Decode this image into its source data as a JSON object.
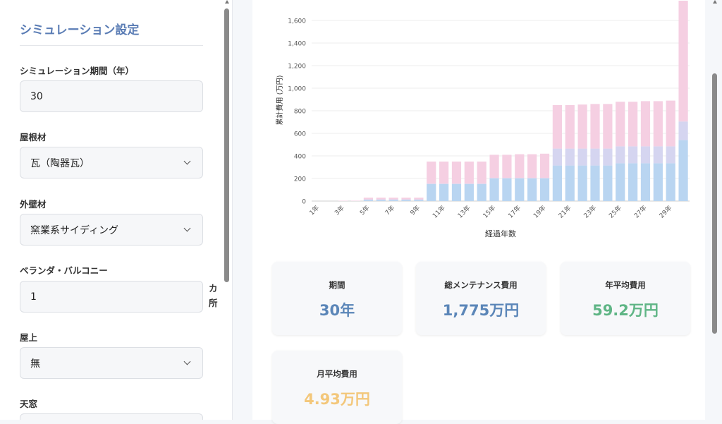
{
  "sidebar": {
    "title": "シミュレーション設定",
    "fields": [
      {
        "label": "シミュレーション期間（年）",
        "value": "30",
        "type": "number"
      },
      {
        "label": "屋根材",
        "value": "瓦（陶器瓦）",
        "type": "select"
      },
      {
        "label": "外壁材",
        "value": "窯業系サイディング",
        "type": "select"
      },
      {
        "label": "ベランダ・バルコニー",
        "value": "1",
        "type": "number",
        "unit": "カ所"
      },
      {
        "label": "屋上",
        "value": "無",
        "type": "select"
      },
      {
        "label": "天窓",
        "value": "",
        "type": "select"
      }
    ]
  },
  "chart_data": {
    "type": "bar",
    "stacked": true,
    "xlabel": "経過年数",
    "ylabel": "累計費用 (万円)",
    "ylim": [
      0,
      1800
    ],
    "yticks": [
      0,
      200,
      400,
      600,
      800,
      1000,
      1200,
      1400,
      1600
    ],
    "ytick_labels": [
      "0",
      "200",
      "400",
      "600",
      "800",
      "1,000",
      "1,200",
      "1,400",
      "1,600"
    ],
    "categories": [
      "1年",
      "2年",
      "3年",
      "4年",
      "5年",
      "6年",
      "7年",
      "8年",
      "9年",
      "10年",
      "11年",
      "12年",
      "13年",
      "14年",
      "15年",
      "16年",
      "17年",
      "18年",
      "19年",
      "20年",
      "21年",
      "22年",
      "23年",
      "24年",
      "25年",
      "26年",
      "27年",
      "28年",
      "29年",
      "30年"
    ],
    "xtick_labels_shown": [
      "1年",
      "3年",
      "5年",
      "7年",
      "9年",
      "11年",
      "13年",
      "15年",
      "17年",
      "19年",
      "21年",
      "23年",
      "25年",
      "27年",
      "29年"
    ],
    "series": [
      {
        "color": "#b9d5f1",
        "values": [
          0,
          0,
          0,
          0,
          10,
          10,
          10,
          10,
          10,
          150,
          150,
          150,
          150,
          150,
          200,
          200,
          200,
          200,
          200,
          315,
          315,
          315,
          315,
          315,
          335,
          335,
          335,
          335,
          335,
          540
        ]
      },
      {
        "color": "#d5d5f0",
        "values": [
          0,
          0,
          0,
          0,
          5,
          5,
          5,
          5,
          5,
          5,
          5,
          5,
          5,
          5,
          5,
          5,
          5,
          5,
          5,
          150,
          150,
          150,
          150,
          150,
          150,
          150,
          150,
          150,
          150,
          165
        ]
      },
      {
        "color": "#f5cfe2",
        "values": [
          0,
          0,
          3,
          3,
          15,
          15,
          15,
          15,
          15,
          195,
          195,
          195,
          195,
          195,
          205,
          205,
          210,
          210,
          215,
          385,
          385,
          390,
          395,
          395,
          395,
          395,
          400,
          400,
          405,
          1070
        ]
      }
    ]
  },
  "cards": [
    {
      "label": "期間",
      "value": "30年",
      "color": "#5b86b8"
    },
    {
      "label": "総メンテナンス費用",
      "value": "1,775万円",
      "color": "#5b86b8"
    },
    {
      "label": "年平均費用",
      "value": "59.2万円",
      "color": "#5fb585"
    },
    {
      "label": "月平均費用",
      "value": "4.93万円",
      "color": "#f3c77a"
    }
  ]
}
